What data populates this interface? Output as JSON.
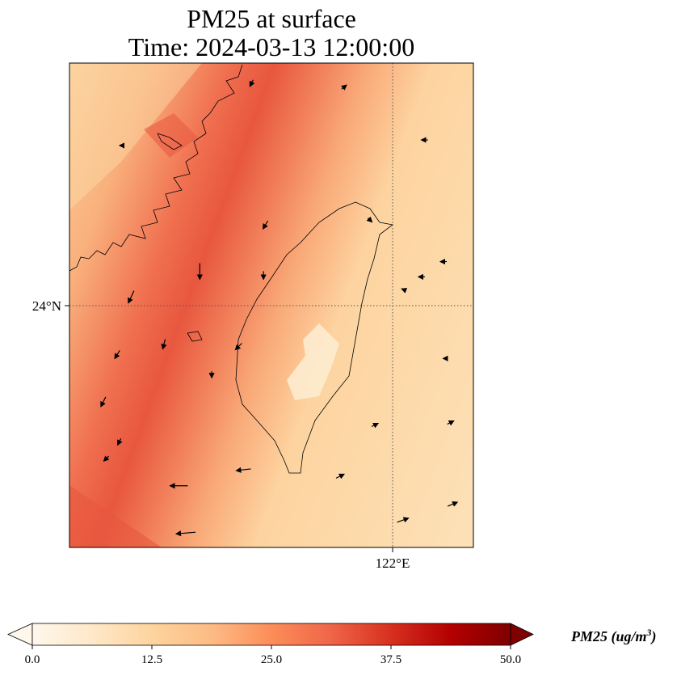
{
  "chart_data": {
    "type": "map",
    "title_line1": "PM25 at surface",
    "title_line2": "Time: 2024-03-13 12:00:00",
    "variable": "PM25",
    "lon_range": [
      118.75,
      122.81
    ],
    "lat_range": [
      20.98,
      27.03
    ],
    "gridlines": {
      "lon": [
        {
          "value": 122,
          "label": "122°E"
        }
      ],
      "lat": [
        {
          "value": 24,
          "label": "24°N"
        }
      ]
    },
    "colorbar": {
      "label": "PM25 (ug/m",
      "label_sup": "3",
      "label_close": ")",
      "min": 0,
      "max": 50,
      "extend": "both",
      "colormap": [
        "#fff7ec",
        "#fee8c8",
        "#fdd49e",
        "#fdbb84",
        "#fc8d59",
        "#ef6548",
        "#d7301f",
        "#b30000",
        "#7f0000"
      ],
      "ticks": [
        {
          "value": 0,
          "label": "0.0"
        },
        {
          "value": 12.5,
          "label": "12.5"
        },
        {
          "value": 25,
          "label": "25.0"
        },
        {
          "value": 37.5,
          "label": "37.5"
        },
        {
          "value": 50,
          "label": "50.0"
        }
      ]
    },
    "field_summary": {
      "high_band_value": 32,
      "background_value": 14,
      "min_value_over_taiwan": 4
    },
    "wind_vectors": [
      [
        120.58,
        26.78,
        -2,
        -4
      ],
      [
        121.51,
        26.73,
        3,
        2.5
      ],
      [
        122.32,
        26.07,
        -4,
        0
      ],
      [
        119.27,
        26.0,
        -2,
        0
      ],
      [
        120.72,
        25.01,
        -3,
        -5
      ],
      [
        121.77,
        25.07,
        2.5,
        -2.5
      ],
      [
        122.51,
        24.55,
        -4,
        0
      ],
      [
        122.29,
        24.36,
        -4,
        0
      ],
      [
        122.11,
        24.2,
        -2.5,
        1
      ],
      [
        120.06,
        24.43,
        0,
        -10
      ],
      [
        120.7,
        24.38,
        0,
        -5
      ],
      [
        119.37,
        24.11,
        -3.5,
        -7.5
      ],
      [
        119.7,
        23.52,
        -1.5,
        -6
      ],
      [
        119.23,
        23.39,
        -3,
        -5
      ],
      [
        120.45,
        23.49,
        -4,
        -4
      ],
      [
        120.18,
        23.14,
        0,
        -4
      ],
      [
        122.53,
        23.34,
        -3,
        0
      ],
      [
        119.09,
        22.8,
        -3,
        -6
      ],
      [
        121.82,
        22.51,
        4,
        2
      ],
      [
        122.58,
        22.54,
        4,
        2
      ],
      [
        119.25,
        22.3,
        -2,
        -4
      ],
      [
        119.12,
        22.09,
        -3,
        -3
      ],
      [
        120.5,
        21.95,
        -9,
        -1
      ],
      [
        119.85,
        21.75,
        -11,
        0
      ],
      [
        121.47,
        21.87,
        5,
        2.5
      ],
      [
        122.6,
        21.52,
        6,
        2.5
      ],
      [
        122.1,
        21.32,
        7,
        2.5
      ],
      [
        119.92,
        21.16,
        -12,
        -1
      ]
    ]
  }
}
